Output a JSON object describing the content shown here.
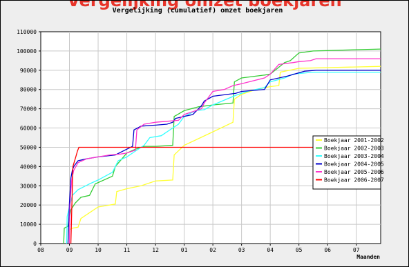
{
  "page": {
    "banner_text": "Vergelijking omzet boekjaren"
  },
  "chart_data": {
    "type": "line",
    "title": "Vergelijking (cumulatief) omzet boekjaren",
    "xlabel": "Maanden",
    "ylabel": "",
    "x_tick_labels": [
      "08",
      "09",
      "10",
      "11",
      "12",
      "01",
      "02",
      "03",
      "04",
      "05",
      "06",
      "07"
    ],
    "xlim": [
      0,
      11.85
    ],
    "ylim": [
      0,
      110000
    ],
    "y_ticks": [
      0,
      10000,
      20000,
      30000,
      40000,
      50000,
      60000,
      70000,
      80000,
      90000,
      100000,
      110000
    ],
    "grid": true,
    "legend_position": "right",
    "series": [
      {
        "name": "Boekjaar 2001-2002",
        "color": "#ffff33",
        "points": [
          [
            0.95,
            0
          ],
          [
            0.97,
            7000
          ],
          [
            1.1,
            8000
          ],
          [
            1.3,
            8500
          ],
          [
            1.4,
            13000
          ],
          [
            1.7,
            16000
          ],
          [
            2.0,
            19000
          ],
          [
            2.6,
            20500
          ],
          [
            2.65,
            27000
          ],
          [
            3.0,
            28500
          ],
          [
            3.5,
            30000
          ],
          [
            4.0,
            32500
          ],
          [
            4.6,
            33000
          ],
          [
            4.65,
            46000
          ],
          [
            5.0,
            51000
          ],
          [
            5.5,
            54500
          ],
          [
            6.0,
            58000
          ],
          [
            6.7,
            63000
          ],
          [
            6.75,
            75000
          ],
          [
            7.0,
            77500
          ],
          [
            7.5,
            80000
          ],
          [
            8.0,
            81500
          ],
          [
            8.3,
            82000
          ],
          [
            8.35,
            89000
          ],
          [
            9.0,
            91000
          ],
          [
            11.85,
            92000
          ]
        ]
      },
      {
        "name": "Boekjaar 2002-2003",
        "color": "#33cc33",
        "points": [
          [
            0.8,
            0
          ],
          [
            0.82,
            8000
          ],
          [
            0.95,
            9000
          ],
          [
            1.05,
            17500
          ],
          [
            1.2,
            21000
          ],
          [
            1.4,
            24000
          ],
          [
            1.7,
            25000
          ],
          [
            1.9,
            31000
          ],
          [
            2.5,
            35000
          ],
          [
            2.6,
            40000
          ],
          [
            3.0,
            47000
          ],
          [
            3.3,
            49000
          ],
          [
            3.6,
            50500
          ],
          [
            4.0,
            50500
          ],
          [
            4.6,
            51000
          ],
          [
            4.65,
            66000
          ],
          [
            5.0,
            69000
          ],
          [
            5.5,
            71000
          ],
          [
            6.0,
            72000
          ],
          [
            6.7,
            73000
          ],
          [
            6.75,
            84000
          ],
          [
            7.0,
            86000
          ],
          [
            7.8,
            87500
          ],
          [
            8.0,
            88000
          ],
          [
            8.5,
            94000
          ],
          [
            8.7,
            95000
          ],
          [
            9.0,
            99000
          ],
          [
            9.5,
            100000
          ],
          [
            11.85,
            101000
          ]
        ]
      },
      {
        "name": "Boekjaar 2003-2004",
        "color": "#33ffff",
        "points": [
          [
            0.9,
            0
          ],
          [
            0.92,
            14000
          ],
          [
            1.0,
            19000
          ],
          [
            1.1,
            25000
          ],
          [
            1.3,
            28000
          ],
          [
            1.7,
            31000
          ],
          [
            2.0,
            33000
          ],
          [
            2.5,
            37000
          ],
          [
            2.7,
            43000
          ],
          [
            3.0,
            45000
          ],
          [
            3.3,
            48000
          ],
          [
            3.6,
            51000
          ],
          [
            3.8,
            55000
          ],
          [
            4.2,
            56000
          ],
          [
            4.6,
            60000
          ],
          [
            4.8,
            62000
          ],
          [
            5.0,
            66000
          ],
          [
            5.4,
            69000
          ],
          [
            5.7,
            69500
          ],
          [
            6.0,
            72000
          ],
          [
            6.8,
            77000
          ],
          [
            7.2,
            79000
          ],
          [
            7.8,
            81000
          ],
          [
            8.0,
            84000
          ],
          [
            8.5,
            86000
          ],
          [
            8.8,
            88000
          ],
          [
            9.5,
            89000
          ],
          [
            11.85,
            89000
          ]
        ]
      },
      {
        "name": "Boekjaar 2004-2005",
        "color": "#0000cc",
        "points": [
          [
            0.95,
            0
          ],
          [
            1.0,
            21000
          ],
          [
            1.05,
            34000
          ],
          [
            1.1,
            38000
          ],
          [
            1.15,
            40000
          ],
          [
            1.3,
            43000
          ],
          [
            1.6,
            44000
          ],
          [
            2.0,
            45000
          ],
          [
            2.6,
            46000
          ],
          [
            3.0,
            49000
          ],
          [
            3.2,
            50500
          ],
          [
            3.25,
            59000
          ],
          [
            3.5,
            61000
          ],
          [
            4.0,
            61500
          ],
          [
            4.4,
            62000
          ],
          [
            4.6,
            63000
          ],
          [
            4.7,
            65000
          ],
          [
            5.0,
            66000
          ],
          [
            5.3,
            67000
          ],
          [
            5.6,
            71500
          ],
          [
            5.7,
            74000
          ],
          [
            6.0,
            76500
          ],
          [
            6.8,
            78000
          ],
          [
            7.0,
            79000
          ],
          [
            7.8,
            80000
          ],
          [
            8.0,
            85000
          ],
          [
            8.6,
            87000
          ],
          [
            9.2,
            89500
          ],
          [
            9.6,
            90000
          ],
          [
            11.85,
            90000
          ]
        ]
      },
      {
        "name": "Boekjaar 2005-2006",
        "color": "#ff33cc",
        "points": [
          [
            1.0,
            0
          ],
          [
            1.02,
            20000
          ],
          [
            1.08,
            33000
          ],
          [
            1.15,
            38000
          ],
          [
            1.3,
            42000
          ],
          [
            1.6,
            44000
          ],
          [
            2.0,
            45000
          ],
          [
            2.4,
            46000
          ],
          [
            2.8,
            46500
          ],
          [
            3.0,
            47000
          ],
          [
            3.3,
            48500
          ],
          [
            3.35,
            59000
          ],
          [
            3.6,
            62000
          ],
          [
            4.0,
            63000
          ],
          [
            4.8,
            64000
          ],
          [
            5.0,
            67000
          ],
          [
            5.6,
            70000
          ],
          [
            5.7,
            73000
          ],
          [
            6.0,
            79000
          ],
          [
            6.4,
            80000
          ],
          [
            6.7,
            82000
          ],
          [
            7.0,
            83000
          ],
          [
            7.8,
            86000
          ],
          [
            8.0,
            88000
          ],
          [
            8.3,
            93000
          ],
          [
            8.8,
            94000
          ],
          [
            9.0,
            94500
          ],
          [
            9.4,
            95000
          ],
          [
            9.6,
            96000
          ],
          [
            11.85,
            96000
          ]
        ]
      },
      {
        "name": "Boekjaar 2006-2007",
        "color": "#ff0000",
        "points": [
          [
            1.05,
            0
          ],
          [
            1.12,
            40000
          ],
          [
            1.22,
            45000
          ],
          [
            1.28,
            48000
          ],
          [
            1.33,
            50000
          ],
          [
            11.85,
            50000
          ]
        ]
      }
    ]
  }
}
